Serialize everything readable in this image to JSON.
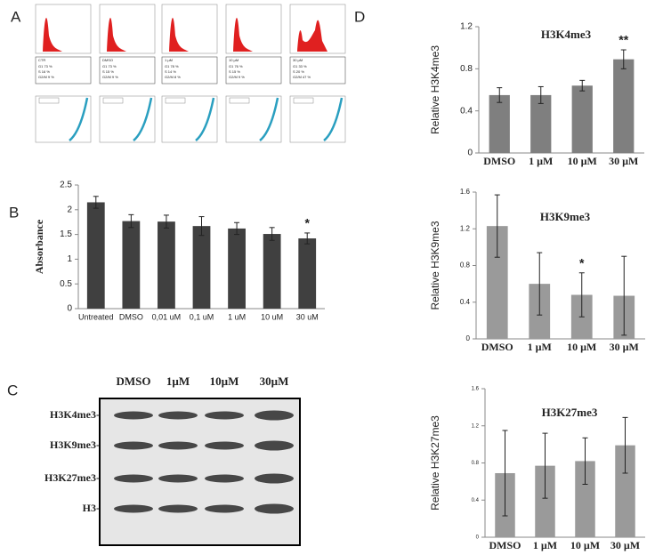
{
  "panels": [
    "A",
    "B",
    "C",
    "D"
  ],
  "flow": {
    "samples": [
      {
        "label": "CTR",
        "stats": [
          "G1 73 %",
          "S 16 %",
          "G2/M 9 %"
        ]
      },
      {
        "label": "DMSO",
        "stats": [
          "G1 73 %",
          "S 15 %",
          "G2/M 9 %"
        ]
      },
      {
        "label": "1 µM",
        "stats": [
          "G1 78 %",
          "S 14 %",
          "G2/M 8 %"
        ]
      },
      {
        "label": "10 µM",
        "stats": [
          "G1 76 %",
          "S 15 %",
          "G2/M 9 %"
        ]
      },
      {
        "label": "30 µM",
        "stats": [
          "G1 33 %",
          "S 20 %",
          "G2/M 47 %"
        ]
      }
    ]
  },
  "blot": {
    "columns": [
      "DMSO",
      "1µM",
      "10µM",
      "30µM"
    ],
    "rows": [
      "H3K4me3-",
      "H3K9me3-",
      "H3K27me3-",
      "H3-"
    ]
  },
  "chart_data": [
    {
      "type": "bar",
      "y_label": "Absorbance",
      "categories": [
        "Untreated",
        "DMSO",
        "0,01 uM",
        "0,1 uM",
        "1 uM",
        "10 uM",
        "30 uM"
      ],
      "values": [
        2.15,
        1.77,
        1.76,
        1.67,
        1.62,
        1.51,
        1.42
      ],
      "errors": [
        0.12,
        0.13,
        0.13,
        0.19,
        0.12,
        0.13,
        0.11
      ],
      "annotations": [
        null,
        null,
        null,
        null,
        null,
        null,
        "*"
      ],
      "color": "#404040",
      "ylim": [
        0,
        2.5
      ],
      "yticks": [
        0,
        0.5,
        1,
        1.5,
        2,
        2.5
      ]
    },
    {
      "type": "bar",
      "title": "H3K4me3",
      "y_label": "Relative H3K4me3",
      "categories": [
        "DMSO",
        "1 µM",
        "10 µM",
        "30 µM"
      ],
      "values": [
        0.55,
        0.55,
        0.64,
        0.89
      ],
      "errors": [
        0.07,
        0.08,
        0.05,
        0.09
      ],
      "annotations": [
        null,
        null,
        null,
        "**"
      ],
      "color": "#7f7f7f",
      "ylim": [
        0,
        1.2
      ],
      "yticks": [
        0,
        0.4,
        0.8,
        1.2
      ]
    },
    {
      "type": "bar",
      "title": "H3K9me3",
      "y_label": "Relative H3K9me3",
      "categories": [
        "DMSO",
        "1 µM",
        "10 µM",
        "30 µM"
      ],
      "values": [
        1.23,
        0.6,
        0.48,
        0.47
      ],
      "errors": [
        0.34,
        0.34,
        0.24,
        0.43
      ],
      "annotations": [
        null,
        null,
        "*",
        null
      ],
      "color": "#9a9a9a",
      "ylim": [
        0,
        1.6
      ],
      "yticks": [
        0,
        0.4,
        0.8,
        1.2,
        1.6
      ]
    },
    {
      "type": "bar",
      "title": "H3K27me3",
      "y_label": "Relative H3K27me3",
      "categories": [
        "DMSO",
        "1 µM",
        "10 µM",
        "30 µM"
      ],
      "values": [
        0.69,
        0.77,
        0.82,
        0.99
      ],
      "errors": [
        0.46,
        0.35,
        0.25,
        0.3
      ],
      "annotations": [
        null,
        null,
        null,
        null
      ],
      "color": "#9a9a9a",
      "ylim": [
        0,
        1.6
      ],
      "yticks": [
        0,
        0.4,
        0.8,
        1.2,
        1.6
      ]
    }
  ]
}
